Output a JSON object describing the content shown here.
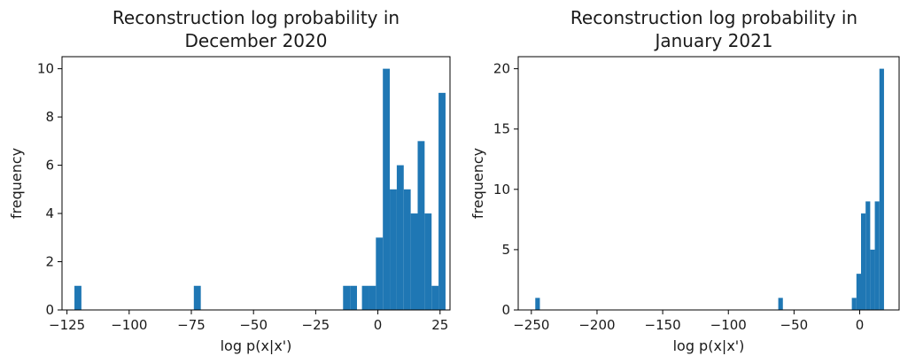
{
  "chart_data": [
    {
      "type": "bar",
      "title": [
        "Reconstruction log probability in",
        "December 2020"
      ],
      "xlabel": "log p(x|x')",
      "ylabel": "frequency",
      "xlim": [
        -127,
        29
      ],
      "ylim": [
        0,
        10.5
      ],
      "xticks": [
        -125,
        -100,
        -75,
        -50,
        -25,
        0,
        25
      ],
      "xtick_labels": [
        "−125",
        "−100",
        "−75",
        "−50",
        "−25",
        "0",
        "25"
      ],
      "yticks": [
        0,
        2,
        4,
        6,
        8,
        10
      ],
      "bar_color": "#1f77b4",
      "bins": [
        {
          "x0": -122,
          "x1": -119.2,
          "count": 1
        },
        {
          "x0": -74,
          "x1": -71.2,
          "count": 1
        },
        {
          "x0": -14,
          "x1": -11.2,
          "count": 1
        },
        {
          "x0": -11.2,
          "x1": -8.4,
          "count": 1
        },
        {
          "x0": -6.4,
          "x1": -3.6,
          "count": 1
        },
        {
          "x0": -3.6,
          "x1": -0.8,
          "count": 1
        },
        {
          "x0": -0.8,
          "x1": 2.0,
          "count": 3
        },
        {
          "x0": 2.0,
          "x1": 4.8,
          "count": 10
        },
        {
          "x0": 4.8,
          "x1": 7.6,
          "count": 5
        },
        {
          "x0": 7.6,
          "x1": 10.4,
          "count": 6
        },
        {
          "x0": 10.4,
          "x1": 13.2,
          "count": 5
        },
        {
          "x0": 13.2,
          "x1": 16.0,
          "count": 4
        },
        {
          "x0": 16.0,
          "x1": 18.8,
          "count": 7
        },
        {
          "x0": 18.8,
          "x1": 21.6,
          "count": 4
        },
        {
          "x0": 21.6,
          "x1": 24.4,
          "count": 1
        },
        {
          "x0": 24.4,
          "x1": 27.2,
          "count": 9
        }
      ]
    },
    {
      "type": "bar",
      "title": [
        "Reconstruction log probability in",
        "January 2021"
      ],
      "xlabel": "log p(x|x')",
      "ylabel": "frequency",
      "xlim": [
        -260,
        30
      ],
      "ylim": [
        0,
        21
      ],
      "xticks": [
        -250,
        -200,
        -150,
        -100,
        -50,
        0
      ],
      "xtick_labels": [
        "−250",
        "−200",
        "−150",
        "−100",
        "−50",
        "0"
      ],
      "yticks": [
        0,
        5,
        10,
        15,
        20
      ],
      "bar_color": "#1f77b4",
      "bins": [
        {
          "x0": -247,
          "x1": -243.5,
          "count": 1
        },
        {
          "x0": -62,
          "x1": -58.5,
          "count": 1
        },
        {
          "x0": -6,
          "x1": -2.5,
          "count": 1
        },
        {
          "x0": -2.5,
          "x1": 1.0,
          "count": 3
        },
        {
          "x0": 1.0,
          "x1": 4.5,
          "count": 8
        },
        {
          "x0": 4.5,
          "x1": 8.0,
          "count": 9
        },
        {
          "x0": 8.0,
          "x1": 11.5,
          "count": 5
        },
        {
          "x0": 11.5,
          "x1": 15.0,
          "count": 9
        },
        {
          "x0": 15.0,
          "x1": 18.5,
          "count": 20
        }
      ]
    }
  ]
}
